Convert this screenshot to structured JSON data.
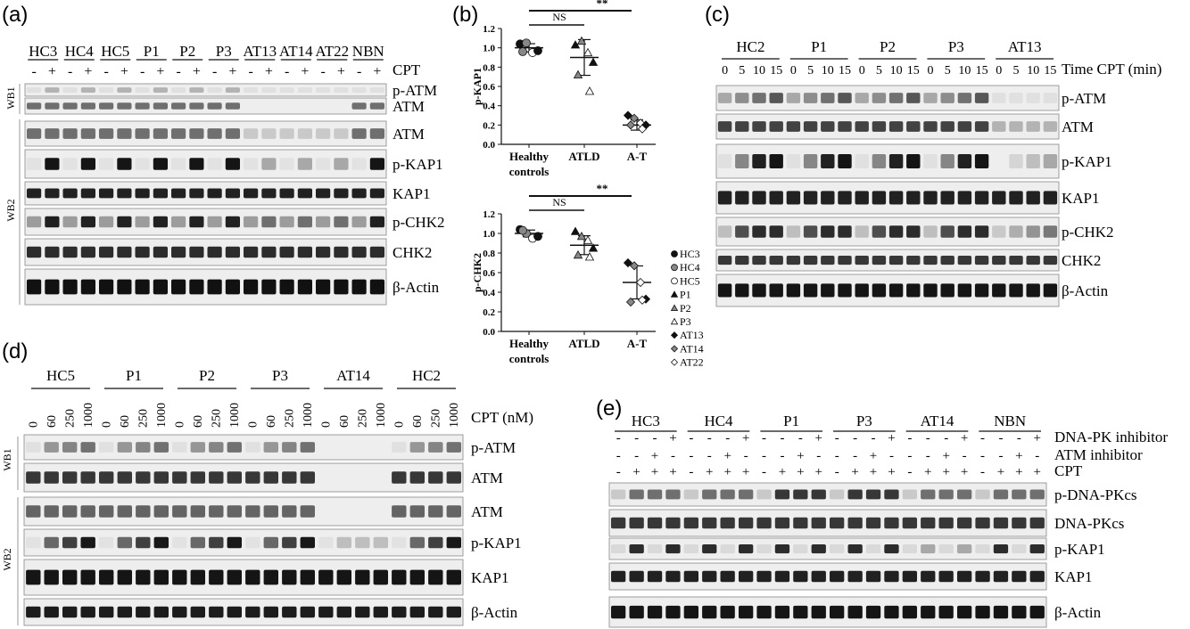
{
  "panel_a": {
    "letter": "(a)",
    "lanes": [
      "HC3",
      "HC4",
      "HC5",
      "P1",
      "P2",
      "P3",
      "AT13",
      "AT14",
      "AT22",
      "NBN"
    ],
    "cpt_label": "CPT",
    "treat_signs": [
      "-",
      "+"
    ],
    "wb1": "WB1",
    "wb2": "WB2",
    "blots": [
      "p-ATM",
      "ATM",
      "ATM",
      "p-KAP1",
      "KAP1",
      "p-CHK2",
      "CHK2",
      "β-Actin"
    ]
  },
  "panel_b": {
    "letter": "(b)",
    "categories": [
      "Healthy controls",
      "ATLD",
      "A-T"
    ],
    "legend": [
      "HC3",
      "HC4",
      "HC5",
      "P1",
      "P2",
      "P3",
      "AT13",
      "AT14",
      "AT22"
    ],
    "top": {
      "ylabel": "p-KAP1",
      "ticks": [
        "1.2",
        "1.0",
        "0.8",
        "0.6",
        "0.4",
        "0.2",
        "0.0"
      ],
      "sig": [
        "NS",
        "**"
      ],
      "means": [
        1.0,
        0.9,
        0.2
      ],
      "points": [
        [
          1.04,
          1.05,
          0.95,
          0.97,
          0.96
        ],
        [
          1.03,
          1.07,
          0.95,
          0.85,
          0.72,
          0.55
        ],
        [
          0.3,
          0.27,
          0.22,
          0.2,
          0.2,
          0.16
        ]
      ]
    },
    "bottom": {
      "ylabel": "p-CHK2",
      "ticks": [
        "1.2",
        "1.0",
        "0.8",
        "0.6",
        "0.4",
        "0.2",
        "0.0"
      ],
      "sig": [
        "NS",
        "**"
      ],
      "means": [
        1.0,
        0.88,
        0.5
      ],
      "points": [
        [
          1.04,
          1.0,
          0.95,
          0.97,
          1.03
        ],
        [
          1.02,
          0.97,
          0.93,
          0.85,
          0.78,
          0.76
        ],
        [
          0.7,
          0.67,
          0.5,
          0.33,
          0.3,
          0.32
        ]
      ]
    }
  },
  "panel_c": {
    "letter": "(c)",
    "groups": [
      "HC2",
      "P1",
      "P2",
      "P3",
      "AT13"
    ],
    "times": [
      "0",
      "5",
      "10",
      "15"
    ],
    "time_label": "Time CPT (min)",
    "blots": [
      "p-ATM",
      "ATM",
      "p-KAP1",
      "KAP1",
      "p-CHK2",
      "CHK2",
      "β-Actin"
    ]
  },
  "panel_d": {
    "letter": "(d)",
    "groups": [
      "HC5",
      "P1",
      "P2",
      "P3",
      "AT14",
      "HC2"
    ],
    "doses": [
      "0",
      "60",
      "250",
      "1000"
    ],
    "cpt_label": "CPT (nM)",
    "wb1": "WB1",
    "wb2": "WB2",
    "blots": [
      "p-ATM",
      "ATM",
      "ATM",
      "p-KAP1",
      "KAP1",
      "β-Actin"
    ]
  },
  "panel_e": {
    "letter": "(e)",
    "groups": [
      "HC3",
      "HC4",
      "P1",
      "P3",
      "AT14",
      "NBN"
    ],
    "treatments": [
      "DNA-PK inhibitor",
      "ATM inhibitor",
      "CPT"
    ],
    "blots": [
      "p-DNA-PKcs",
      "DNA-PKcs",
      "p-KAP1",
      "KAP1",
      "β-Actin"
    ]
  }
}
